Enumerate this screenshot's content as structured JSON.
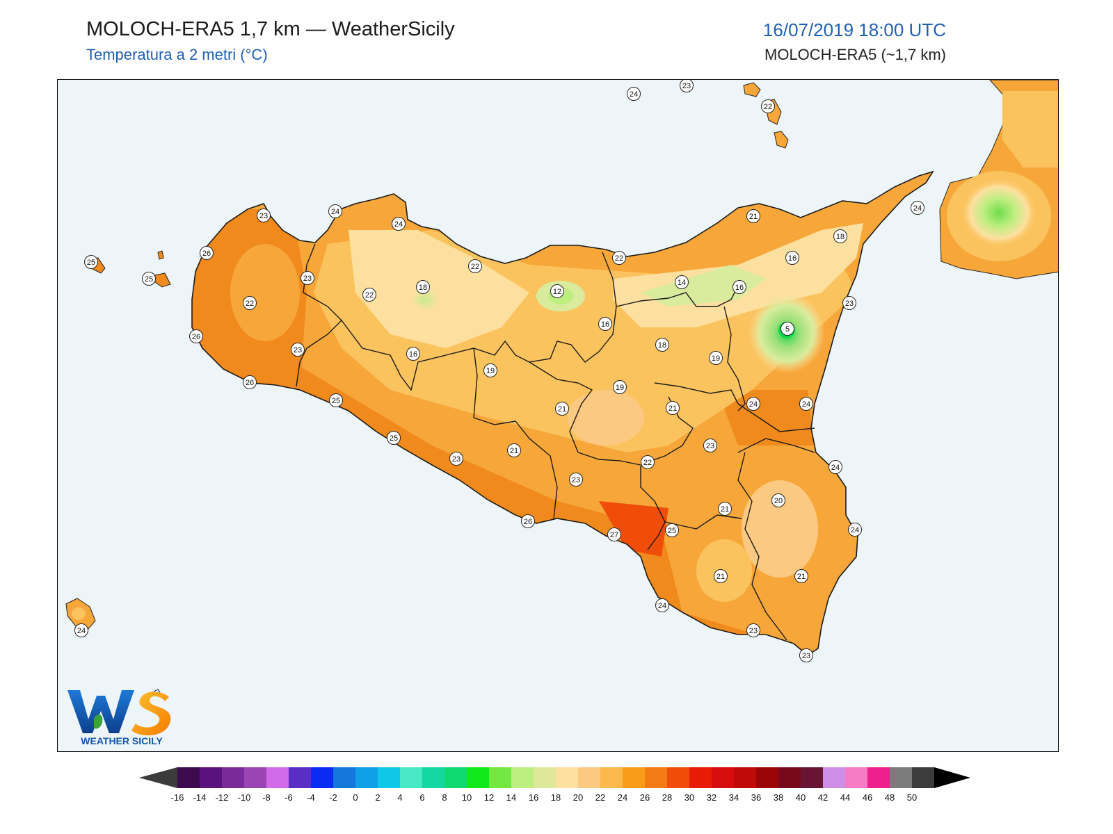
{
  "header": {
    "title": "MOLOCH-ERA5 1,7 km — WeatherSicily",
    "subtitle": "Temperatura a 2 metri (°C)",
    "datetime": "16/07/2019 18:00 UTC",
    "model_resolution": "MOLOCH-ERA5 (~1,7 km)"
  },
  "logo": {
    "letters": "WS",
    "text": "WEATHER SICILY",
    "icon": "weather-sicily-logo"
  },
  "colors": {
    "sea": "#eef5f9",
    "accent_blue": "#1f5fb4",
    "land_hot": "#f08a1c",
    "land_warm": "#f7a73a",
    "land_mild": "#fbc35e",
    "land_cool": "#fde0a0",
    "land_cold": "#d9ec9e",
    "land_very_cold": "#9fe07a"
  },
  "colorbar": {
    "ticks": [
      "-16",
      "-14",
      "-12",
      "-10",
      "-8",
      "-6",
      "-4",
      "-2",
      "0",
      "2",
      "4",
      "6",
      "8",
      "10",
      "12",
      "14",
      "16",
      "18",
      "20",
      "22",
      "24",
      "26",
      "28",
      "30",
      "32",
      "34",
      "36",
      "38",
      "40",
      "42",
      "44",
      "46",
      "48",
      "50"
    ],
    "colors": [
      "#3b0a4f",
      "#5a1280",
      "#7b2a9c",
      "#9a45b3",
      "#d26be8",
      "#5a2dc4",
      "#0a2cf2",
      "#1477d9",
      "#0fa0e8",
      "#0fc8e8",
      "#49e8c4",
      "#13d6a0",
      "#10d870",
      "#11e81a",
      "#72e840",
      "#bdee80",
      "#dde89a",
      "#fde0a0",
      "#fbc981",
      "#fbb84c",
      "#f89c19",
      "#f37a15",
      "#f04d0b",
      "#e81c05",
      "#d80d0d",
      "#c00a0a",
      "#9c0505",
      "#760a1c",
      "#6a1434",
      "#ce8ee8",
      "#f67ac4",
      "#ee1f8c",
      "#7c7c7c",
      "#3c3c3c"
    ]
  },
  "stations": [
    {
      "v": "24"
    },
    {
      "v": "23"
    },
    {
      "v": "22"
    },
    {
      "v": "24"
    },
    {
      "v": "21"
    },
    {
      "v": "18"
    },
    {
      "v": "16"
    },
    {
      "v": "22"
    },
    {
      "v": "14"
    },
    {
      "v": "16"
    },
    {
      "v": "23"
    },
    {
      "v": "5"
    },
    {
      "v": "16"
    },
    {
      "v": "18"
    },
    {
      "v": "19"
    },
    {
      "v": "24"
    },
    {
      "v": "24"
    },
    {
      "v": "21"
    },
    {
      "v": "23"
    },
    {
      "v": "19"
    },
    {
      "v": "21"
    },
    {
      "v": "22"
    },
    {
      "v": "24"
    },
    {
      "v": "20"
    },
    {
      "v": "21"
    },
    {
      "v": "24"
    },
    {
      "v": "21"
    },
    {
      "v": "21"
    },
    {
      "v": "24"
    },
    {
      "v": "23"
    },
    {
      "v": "23"
    },
    {
      "v": "25"
    },
    {
      "v": "27"
    },
    {
      "v": "26"
    },
    {
      "v": "23"
    },
    {
      "v": "23"
    },
    {
      "v": "21"
    },
    {
      "v": "25"
    },
    {
      "v": "25"
    },
    {
      "v": "26"
    },
    {
      "v": "23"
    },
    {
      "v": "26"
    },
    {
      "v": "22"
    },
    {
      "v": "23"
    },
    {
      "v": "22"
    },
    {
      "v": "26"
    },
    {
      "v": "25"
    },
    {
      "v": "25"
    },
    {
      "v": "24"
    },
    {
      "v": "24"
    },
    {
      "v": "23"
    },
    {
      "v": "22"
    },
    {
      "v": "18"
    },
    {
      "v": "12"
    },
    {
      "v": "16"
    },
    {
      "v": "19"
    },
    {
      "v": "24"
    }
  ]
}
